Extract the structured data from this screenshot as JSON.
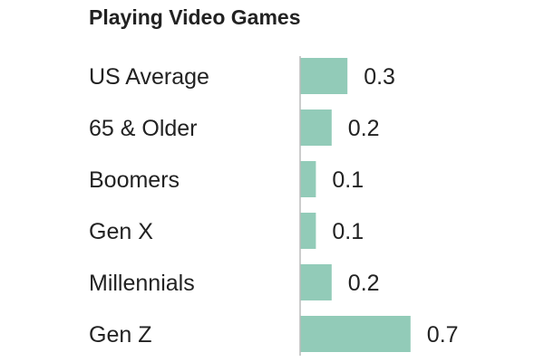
{
  "chart_data": {
    "type": "bar",
    "orientation": "horizontal",
    "title": "Playing Video Games",
    "xlabel": "",
    "ylabel": "",
    "categories": [
      "US Average",
      "65 & Older",
      "Boomers",
      "Gen X",
      "Millennials",
      "Gen Z"
    ],
    "values": [
      0.3,
      0.2,
      0.1,
      0.1,
      0.2,
      0.7
    ],
    "value_labels": [
      "0.3",
      "0.2",
      "0.1",
      "0.1",
      "0.2",
      "0.7"
    ],
    "xlim": [
      0,
      0.7
    ],
    "grid": false,
    "legend": "none",
    "bar_color": "#92cbb8",
    "axis_color": "#bbbbbb",
    "text_color": "#222222"
  }
}
